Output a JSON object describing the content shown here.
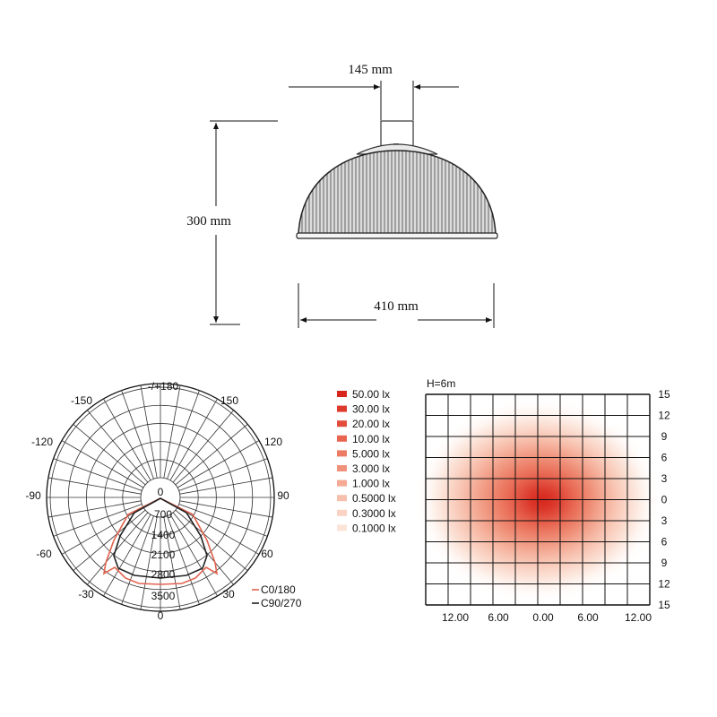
{
  "dimensions": {
    "top_width": "145 mm",
    "height": "300 mm",
    "bottom_width": "410 mm"
  },
  "polar": {
    "angle_labels": [
      "-/+180",
      "150",
      "-150",
      "120",
      "-120",
      "90",
      "-90",
      "60",
      "-60",
      "30",
      "-30",
      "0"
    ],
    "radial_labels": [
      "0",
      "700",
      "1400",
      "2100",
      "2800",
      "3500"
    ],
    "legend": [
      {
        "label": "C0/180",
        "color": "#e2624e"
      },
      {
        "label": "C90/270",
        "color": "#222222"
      }
    ]
  },
  "isolux": {
    "height_label": "H=6m",
    "legend": [
      {
        "label": "50.00 lx",
        "color": "#d8261c"
      },
      {
        "label": "30.00 lx",
        "color": "#dd3a2c"
      },
      {
        "label": "20.00 lx",
        "color": "#e24d3b"
      },
      {
        "label": "10.00 lx",
        "color": "#e8654f"
      },
      {
        "label": "5.000 lx",
        "color": "#ec7b64"
      },
      {
        "label": "3.000 lx",
        "color": "#f0927b"
      },
      {
        "label": "1.000 lx",
        "color": "#f4aa94"
      },
      {
        "label": "0.5000 lx",
        "color": "#f7c0ad"
      },
      {
        "label": "0.3000 lx",
        "color": "#fad3c4"
      },
      {
        "label": "0.1000 lx",
        "color": "#fce4d8"
      }
    ],
    "x_ticks": [
      "12.00",
      "6.00",
      "0.00",
      "6.00",
      "12.00"
    ],
    "y_ticks": [
      "15",
      "12",
      "9",
      "6",
      "3",
      "0",
      "3",
      "6",
      "9",
      "12",
      "15"
    ]
  }
}
